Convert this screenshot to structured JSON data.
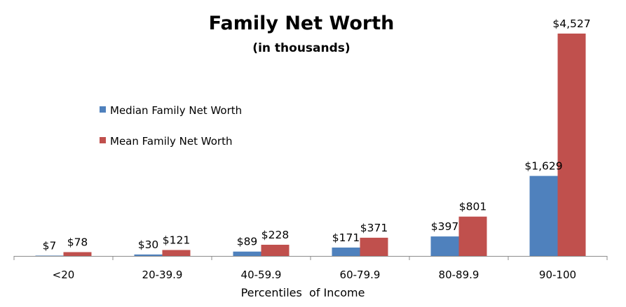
{
  "chart_data": {
    "type": "bar",
    "title": "Family Net Worth",
    "subtitle": "(in thousands)",
    "xlabel": "Percentiles  of Income",
    "ylabel": "",
    "categories": [
      "<20",
      "20-39.9",
      "40-59.9",
      "60-79.9",
      "80-89.9",
      "90-100"
    ],
    "series": [
      {
        "name": "Median Family Net Worth",
        "color": "#4f81bd",
        "values": [
          7,
          30,
          89,
          171,
          397,
          1629
        ],
        "labels": [
          "$7",
          "$30",
          "$89",
          "$171",
          "$397",
          "$1,629"
        ]
      },
      {
        "name": "Mean Family Net Worth",
        "color": "#c0504d",
        "values": [
          78,
          121,
          228,
          371,
          801,
          4527
        ],
        "labels": [
          "$78",
          "$121",
          "$228",
          "$371",
          "$801",
          "$4,527"
        ]
      }
    ],
    "ylim": [
      0,
      4527
    ],
    "grid": false,
    "legend_position": "left"
  }
}
